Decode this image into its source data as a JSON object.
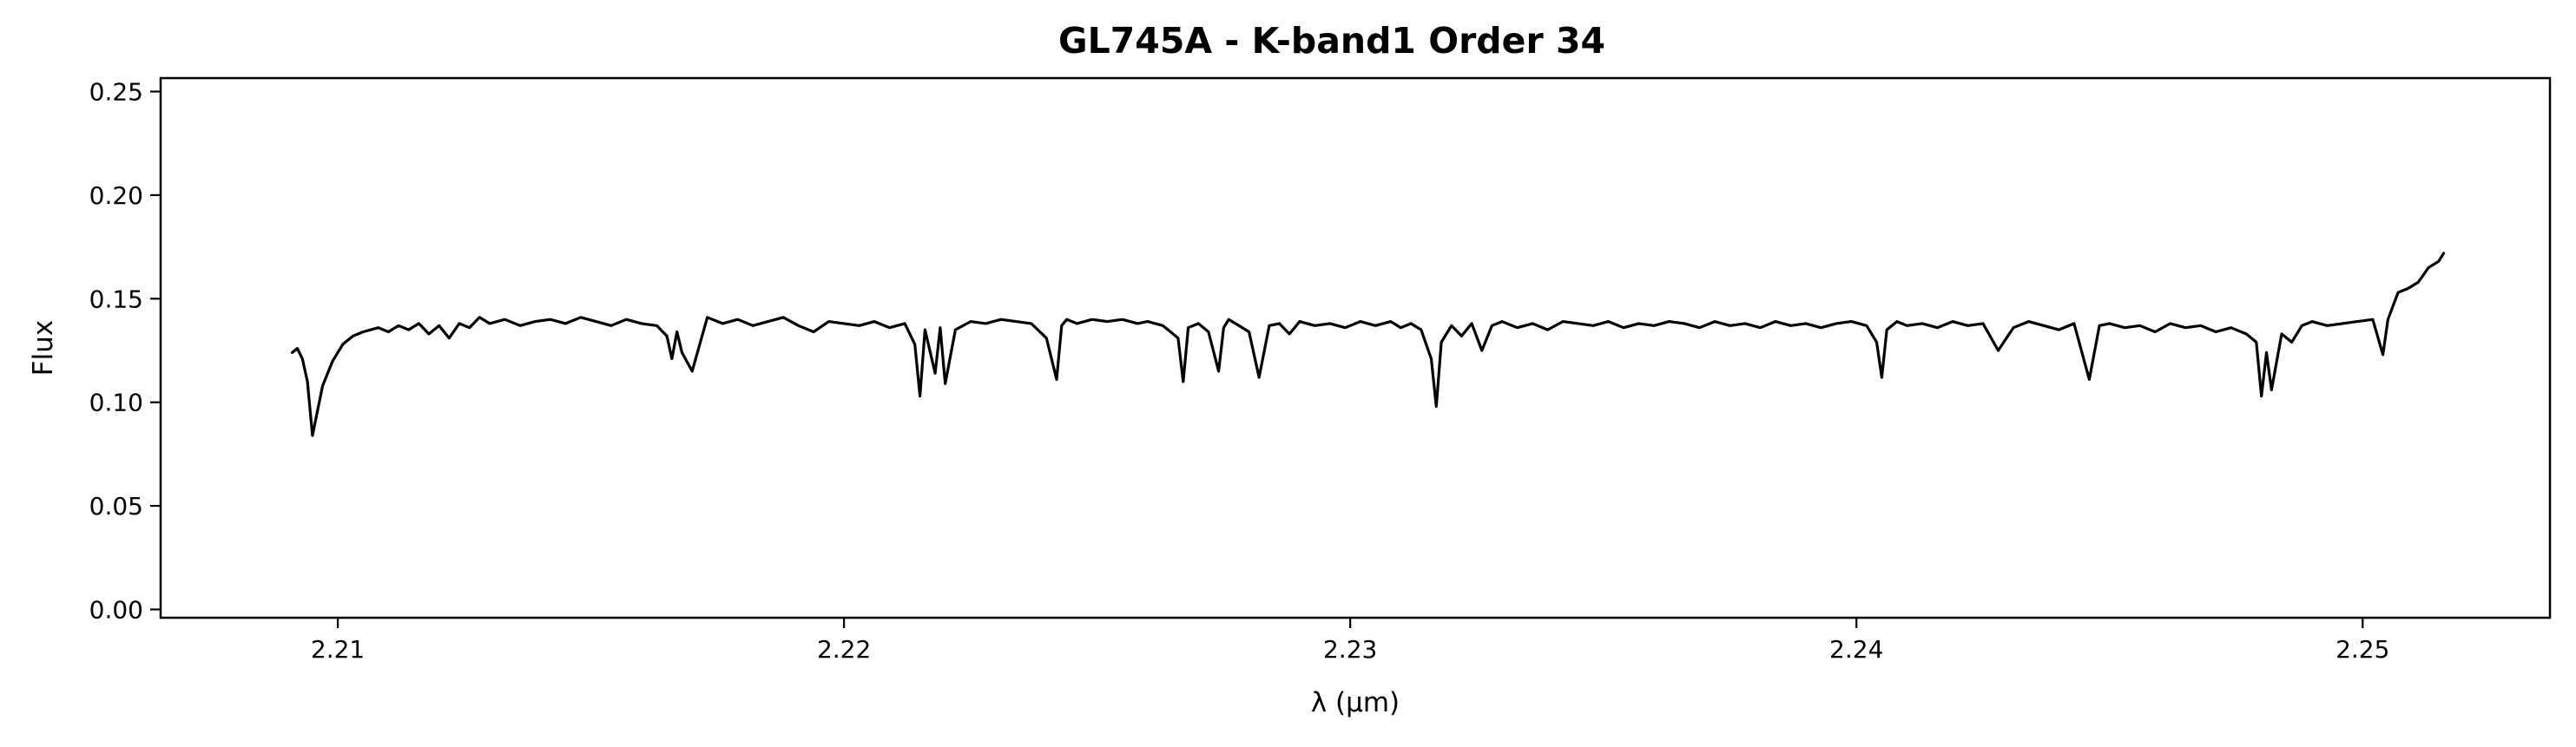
{
  "chart_data": {
    "type": "line",
    "title": "GL745A - K-band1 Order 34",
    "xlabel": "λ (μm)",
    "ylabel": "Flux",
    "xlim": [
      2.2065,
      2.2537
    ],
    "ylim": [
      -0.004,
      0.2565
    ],
    "xticks": [
      2.21,
      2.22,
      2.23,
      2.24,
      2.25
    ],
    "xtick_labels": [
      "2.21",
      "2.22",
      "2.23",
      "2.24",
      "2.25"
    ],
    "yticks": [
      0.0,
      0.05,
      0.1,
      0.15,
      0.2,
      0.25
    ],
    "ytick_labels": [
      "0.00",
      "0.05",
      "0.10",
      "0.15",
      "0.20",
      "0.25"
    ],
    "grid": false,
    "line_color": "#000000",
    "series": [
      {
        "x": [
          2.2091,
          2.2092,
          2.2093,
          2.2094,
          2.2095,
          2.2097,
          2.2099,
          2.2101,
          2.2103,
          2.2105,
          2.2108,
          2.211,
          2.2112,
          2.2114,
          2.2116,
          2.2118,
          2.212,
          2.2122,
          2.2124,
          2.2126,
          2.2128,
          2.213,
          2.2133,
          2.2136,
          2.2139,
          2.2142,
          2.2145,
          2.2148,
          2.2151,
          2.2154,
          2.2157,
          2.216,
          2.2163,
          2.2165,
          2.2166,
          2.2167,
          2.2168,
          2.217,
          2.2173,
          2.2176,
          2.2179,
          2.2182,
          2.2185,
          2.2188,
          2.2191,
          2.2194,
          2.2197,
          2.22,
          2.2203,
          2.2206,
          2.2209,
          2.2212,
          2.2214,
          2.2215,
          2.2216,
          2.2218,
          2.2219,
          2.222,
          2.2222,
          2.2225,
          2.2228,
          2.2231,
          2.2234,
          2.2237,
          2.224,
          2.2242,
          2.2243,
          2.2244,
          2.2246,
          2.2249,
          2.2252,
          2.2255,
          2.2258,
          2.226,
          2.2263,
          2.2266,
          2.2267,
          2.2268,
          2.227,
          2.2272,
          2.2274,
          2.2275,
          2.2276,
          2.2278,
          2.228,
          2.2282,
          2.2284,
          2.2286,
          2.2288,
          2.229,
          2.2293,
          2.2296,
          2.2299,
          2.2302,
          2.2305,
          2.2308,
          2.231,
          2.2312,
          2.2314,
          2.2316,
          2.2317,
          2.2318,
          2.232,
          2.2322,
          2.2324,
          2.2326,
          2.2328,
          2.233,
          2.2333,
          2.2336,
          2.2339,
          2.2342,
          2.2345,
          2.2348,
          2.2351,
          2.2354,
          2.2357,
          2.236,
          2.2363,
          2.2366,
          2.2369,
          2.2372,
          2.2375,
          2.2378,
          2.2381,
          2.2384,
          2.2387,
          2.239,
          2.2393,
          2.2396,
          2.2399,
          2.2402,
          2.2404,
          2.2405,
          2.2406,
          2.2408,
          2.241,
          2.2413,
          2.2416,
          2.2419,
          2.2422,
          2.2425,
          2.2428,
          2.2431,
          2.2434,
          2.2437,
          2.244,
          2.2443,
          2.2446,
          2.2448,
          2.245,
          2.2453,
          2.2456,
          2.2459,
          2.2462,
          2.2465,
          2.2468,
          2.2471,
          2.2474,
          2.2477,
          2.2479,
          2.248,
          2.2481,
          2.2482,
          2.2484,
          2.2486,
          2.2488,
          2.249,
          2.2493,
          2.2496,
          2.2499,
          2.2502,
          2.2504,
          2.2505,
          2.2507,
          2.2509,
          2.2511,
          2.2513,
          2.2515,
          2.2516
        ],
        "y": [
          0.124,
          0.126,
          0.121,
          0.11,
          0.084,
          0.108,
          0.12,
          0.128,
          0.132,
          0.134,
          0.136,
          0.134,
          0.137,
          0.135,
          0.138,
          0.133,
          0.137,
          0.131,
          0.138,
          0.136,
          0.141,
          0.138,
          0.14,
          0.137,
          0.139,
          0.14,
          0.138,
          0.141,
          0.139,
          0.137,
          0.14,
          0.138,
          0.137,
          0.132,
          0.121,
          0.134,
          0.124,
          0.115,
          0.141,
          0.138,
          0.14,
          0.137,
          0.139,
          0.141,
          0.137,
          0.134,
          0.139,
          0.138,
          0.137,
          0.139,
          0.136,
          0.138,
          0.128,
          0.103,
          0.135,
          0.114,
          0.136,
          0.109,
          0.135,
          0.139,
          0.138,
          0.14,
          0.139,
          0.138,
          0.131,
          0.111,
          0.137,
          0.14,
          0.138,
          0.14,
          0.139,
          0.14,
          0.138,
          0.139,
          0.137,
          0.131,
          0.11,
          0.136,
          0.138,
          0.134,
          0.115,
          0.136,
          0.14,
          0.137,
          0.134,
          0.112,
          0.137,
          0.138,
          0.133,
          0.139,
          0.137,
          0.138,
          0.136,
          0.139,
          0.137,
          0.139,
          0.136,
          0.138,
          0.135,
          0.121,
          0.098,
          0.129,
          0.137,
          0.132,
          0.138,
          0.125,
          0.137,
          0.139,
          0.136,
          0.138,
          0.135,
          0.139,
          0.138,
          0.137,
          0.139,
          0.136,
          0.138,
          0.137,
          0.139,
          0.138,
          0.136,
          0.139,
          0.137,
          0.138,
          0.136,
          0.139,
          0.137,
          0.138,
          0.136,
          0.138,
          0.139,
          0.137,
          0.129,
          0.112,
          0.135,
          0.139,
          0.137,
          0.138,
          0.136,
          0.139,
          0.137,
          0.138,
          0.125,
          0.136,
          0.139,
          0.137,
          0.135,
          0.138,
          0.111,
          0.137,
          0.138,
          0.136,
          0.137,
          0.134,
          0.138,
          0.136,
          0.137,
          0.134,
          0.136,
          0.133,
          0.129,
          0.103,
          0.124,
          0.106,
          0.133,
          0.129,
          0.137,
          0.139,
          0.137,
          0.138,
          0.139,
          0.14,
          0.123,
          0.14,
          0.153,
          0.155,
          0.158,
          0.165,
          0.168,
          0.172
        ]
      }
    ]
  }
}
